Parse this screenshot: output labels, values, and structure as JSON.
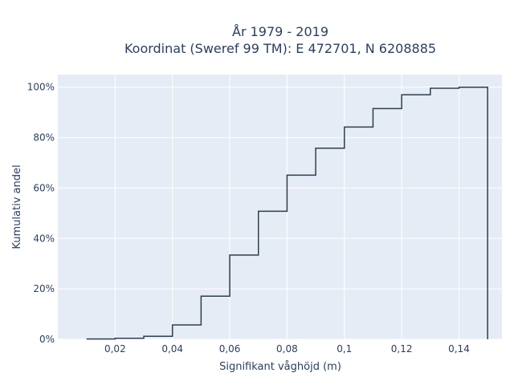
{
  "chart_data": {
    "type": "line",
    "line_shape": "step-cumulative",
    "title_line1": "År 1979 - 2019",
    "title_line2": "Koordinat (Sweref 99 TM): E 472701, N 6208885",
    "xlabel": "Signifikant våghöjd (m)",
    "ylabel": "Kumulativ andel",
    "xlim": [
      0.0,
      0.155
    ],
    "ylim": [
      0,
      105
    ],
    "x_ticks": [
      0.02,
      0.04,
      0.06,
      0.08,
      0.1,
      0.12,
      0.14
    ],
    "x_tick_labels": [
      "0,02",
      "0,04",
      "0,06",
      "0,08",
      "0,1",
      "0,12",
      "0,14"
    ],
    "y_ticks": [
      0,
      20,
      40,
      60,
      80,
      100
    ],
    "y_tick_labels": [
      "0%",
      "20%",
      "40%",
      "60%",
      "80%",
      "100%"
    ],
    "grid": true,
    "series": [
      {
        "color": "#2f3e4e",
        "bin_edges": [
          0.01,
          0.02,
          0.03,
          0.04,
          0.05,
          0.06,
          0.07,
          0.08,
          0.09,
          0.1,
          0.11,
          0.12,
          0.13,
          0.14,
          0.15
        ],
        "values": [
          0.1,
          0.4,
          1.2,
          5.7,
          17.1,
          33.4,
          50.8,
          65.1,
          75.8,
          84.2,
          91.5,
          97.0,
          99.6,
          100.0
        ]
      }
    ]
  }
}
